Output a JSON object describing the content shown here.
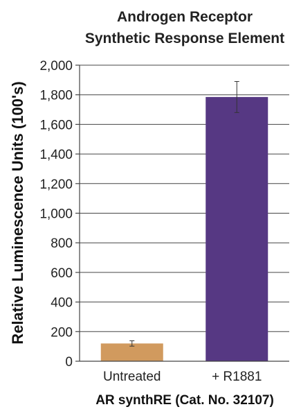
{
  "chart_data": {
    "type": "bar",
    "title": [
      "Androgen Receptor",
      "Synthetic Response Element"
    ],
    "xlabel": "AR synthRE (Cat. No. 32107)",
    "ylabel": "Relative Luminescence Units (100's)",
    "categories": [
      "Untreated",
      "+ R1881"
    ],
    "values": [
      120,
      1785
    ],
    "error": [
      18,
      105
    ],
    "colors": [
      "#d19a5e",
      "#563883"
    ],
    "ylim": [
      0,
      2000
    ],
    "yticks": [
      0,
      200,
      400,
      600,
      800,
      1000,
      1200,
      1400,
      1600,
      1800,
      2000
    ],
    "ytick_labels": [
      "0",
      "200",
      "400",
      "600",
      "800",
      "1,000",
      "1,200",
      "1,400",
      "1,600",
      "1,800",
      "2,000"
    ],
    "grid": true,
    "legend": false
  }
}
